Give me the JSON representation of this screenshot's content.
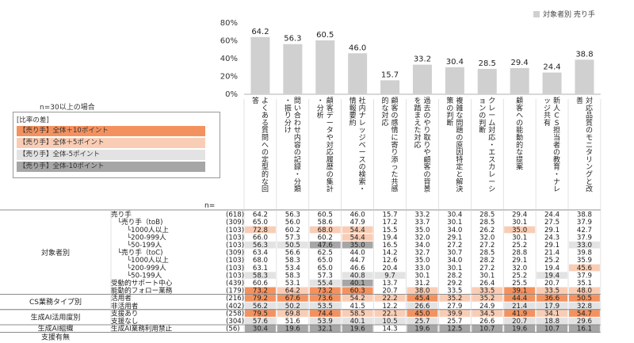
{
  "legend_top": {
    "label": "対象者別 売り手"
  },
  "condition_note": "n=30以上の場合",
  "diff_legend": {
    "title": "[比率の差]",
    "items": [
      {
        "label": "【売り手】全体＋10ポイント",
        "color": "#F4925F"
      },
      {
        "label": "【売り手】全体＋5ポイント",
        "color": "#F9CDB5"
      },
      {
        "label": "【売り手】全体-5ポイント",
        "color": "#E3E3E3"
      },
      {
        "label": "【売り手】全体-10ポイント",
        "color": "#A6A6A6"
      }
    ]
  },
  "colors": {
    "bar": "#D0D0D0",
    "plus10": "#F4925F",
    "plus5": "#F9CDB5",
    "minus5": "#E3E3E3",
    "minus10": "#A6A6A6"
  },
  "chart_data": {
    "type": "bar",
    "ylim": [
      0,
      80
    ],
    "y_ticks": [
      "0%",
      "20%",
      "40%",
      "60%",
      "80%"
    ],
    "categories": [
      "よくある質問への定型的な回答",
      "問い合わせ内容の記録・分類・振り分け",
      "顧客データや対応履歴の集計・分析",
      "社内ナレッジベースの検索・情報要約",
      "顧客の感情に寄り添った共感的な対応",
      "過去のやり取りや顧客の背景を踏まえた対応",
      "複雑な問題の原因特定と解決策の判断",
      "クレーム対応・エスカレーションの判断",
      "顧客への能動的な提案",
      "新人CS担当者の教育・ナレッジ共有",
      "対応品質のモニタリングと改善"
    ],
    "series": [
      {
        "name": "対象者別 売り手",
        "values": [
          64.2,
          56.3,
          60.5,
          46.0,
          15.7,
          33.2,
          30.4,
          28.5,
          29.4,
          24.4,
          38.8
        ]
      }
    ],
    "n_label": "n=",
    "table": {
      "groups": [
        {
          "label": "対象者別",
          "rows": [
            0,
            10
          ]
        },
        {
          "label": "CS業務タイプ別",
          "rows": [
            11,
            12
          ]
        },
        {
          "label": "生成AI活用度別",
          "rows": [
            13,
            14
          ]
        },
        {
          "label": "生成AI組織",
          "rows": [
            15,
            15
          ]
        },
        {
          "label": "支援有無",
          "rows": [
            16,
            17
          ]
        }
      ],
      "rows": [
        {
          "label": "売り手",
          "n": "(618)",
          "values": [
            "64.2",
            "56.3",
            "60.5",
            "46.0",
            "15.7",
            "33.2",
            "30.4",
            "28.5",
            "29.4",
            "24.4",
            "38.8"
          ],
          "flags": [
            0,
            0,
            0,
            0,
            0,
            0,
            0,
            0,
            0,
            0,
            0
          ]
        },
        {
          "label": "└売り手（toB)",
          "n": "(309)",
          "values": [
            "65.0",
            "56.0",
            "58.6",
            "47.9",
            "17.2",
            "33.7",
            "30.1",
            "28.5",
            "30.1",
            "27.5",
            "37.9"
          ],
          "flags": [
            0,
            0,
            0,
            0,
            0,
            0,
            0,
            0,
            0,
            0,
            0
          ]
        },
        {
          "label": "└1000人以上",
          "n": "(103)",
          "values": [
            "72.8",
            "60.2",
            "68.0",
            "54.4",
            "15.5",
            "35.0",
            "34.0",
            "26.2",
            "35.0",
            "29.1",
            "42.7"
          ],
          "flags": [
            1,
            0,
            1,
            1,
            0,
            0,
            0,
            0,
            1,
            0,
            0
          ]
        },
        {
          "label": "└200-999人",
          "n": "(103)",
          "values": [
            "66.0",
            "57.3",
            "60.2",
            "54.4",
            "19.4",
            "32.0",
            "29.1",
            "32.0",
            "30.1",
            "24.3",
            "37.9"
          ],
          "flags": [
            0,
            0,
            0,
            1,
            0,
            0,
            0,
            0,
            0,
            0,
            0
          ]
        },
        {
          "label": "└50-199人",
          "n": "(103)",
          "values": [
            "56.3",
            "50.5",
            "47.6",
            "35.0",
            "16.5",
            "34.0",
            "27.2",
            "27.2",
            "25.2",
            "29.1",
            "33.0"
          ],
          "flags": [
            -1,
            -1,
            -2,
            -2,
            0,
            0,
            0,
            0,
            0,
            0,
            -1
          ]
        },
        {
          "label": "└売り手（toC)",
          "n": "(309)",
          "values": [
            "63.4",
            "56.6",
            "62.5",
            "44.0",
            "14.2",
            "32.7",
            "30.7",
            "28.5",
            "28.8",
            "21.4",
            "39.8"
          ],
          "flags": [
            0,
            0,
            0,
            0,
            0,
            0,
            0,
            0,
            0,
            0,
            0
          ]
        },
        {
          "label": "└1000人以上",
          "n": "(103)",
          "values": [
            "68.0",
            "58.3",
            "65.0",
            "44.7",
            "12.6",
            "35.0",
            "34.0",
            "28.2",
            "29.1",
            "25.2",
            "35.9"
          ],
          "flags": [
            0,
            0,
            0,
            0,
            0,
            0,
            0,
            0,
            0,
            0,
            0
          ]
        },
        {
          "label": "└200-999人",
          "n": "(103)",
          "values": [
            "63.1",
            "53.4",
            "65.0",
            "46.6",
            "20.4",
            "33.0",
            "30.1",
            "27.2",
            "32.0",
            "19.4",
            "45.6"
          ],
          "flags": [
            0,
            0,
            0,
            0,
            0,
            0,
            0,
            0,
            0,
            0,
            1
          ]
        },
        {
          "label": "└50-199人",
          "n": "(103)",
          "values": [
            "58.3",
            "58.3",
            "57.3",
            "40.8",
            "9.7",
            "30.1",
            "28.2",
            "30.1",
            "25.2",
            "19.4",
            "37.9"
          ],
          "flags": [
            -1,
            0,
            0,
            -1,
            -1,
            0,
            0,
            0,
            0,
            -1,
            0
          ]
        },
        {
          "label": "受動的サポート中心",
          "n": "(439)",
          "values": [
            "60.6",
            "53.1",
            "55.4",
            "40.1",
            "13.7",
            "31.2",
            "29.2",
            "26.4",
            "25.5",
            "20.7",
            "35.1"
          ],
          "flags": [
            0,
            0,
            -1,
            -2,
            0,
            0,
            0,
            0,
            0,
            0,
            0
          ]
        },
        {
          "label": "能動的フォロー業務",
          "n": "(179)",
          "values": [
            "73.2",
            "64.2",
            "73.2",
            "60.3",
            "20.7",
            "38.0",
            "33.5",
            "33.5",
            "39.1",
            "33.5",
            "48.0"
          ],
          "flags": [
            2,
            1,
            2,
            2,
            0,
            1,
            0,
            1,
            2,
            1,
            1
          ]
        },
        {
          "label": "活用者",
          "n": "(216)",
          "values": [
            "79.2",
            "67.6",
            "73.6",
            "54.2",
            "22.2",
            "45.4",
            "35.2",
            "35.2",
            "44.4",
            "36.6",
            "50.5"
          ],
          "flags": [
            2,
            2,
            2,
            1,
            1,
            2,
            1,
            1,
            2,
            2,
            2
          ]
        },
        {
          "label": "非活用者",
          "n": "(402)",
          "values": [
            "56.2",
            "50.2",
            "53.5",
            "41.5",
            "12.2",
            "26.6",
            "27.9",
            "24.9",
            "21.4",
            "17.9",
            "32.8"
          ],
          "flags": [
            -1,
            -1,
            -1,
            0,
            0,
            -1,
            0,
            0,
            -1,
            -1,
            -1
          ]
        },
        {
          "label": "支援あり",
          "n": "(258)",
          "values": [
            "79.5",
            "69.8",
            "74.4",
            "58.5",
            "22.1",
            "45.0",
            "39.9",
            "34.5",
            "41.9",
            "34.1",
            "54.7"
          ],
          "flags": [
            2,
            1,
            2,
            1,
            1,
            2,
            1,
            1,
            2,
            1,
            2
          ]
        },
        {
          "label": "支援なし",
          "n": "(304)",
          "values": [
            "57.6",
            "51.6",
            "53.9",
            "40.1",
            "10.5",
            "25.7",
            "25.7",
            "26.6",
            "20.7",
            "18.8",
            "29.6"
          ],
          "flags": [
            -1,
            0,
            -1,
            -1,
            -1,
            -1,
            0,
            0,
            -1,
            -1,
            -1
          ]
        },
        {
          "label": "生成AI業務利用禁止",
          "n": "(56)",
          "values": [
            "30.4",
            "19.6",
            "32.1",
            "19.6",
            "14.3",
            "19.6",
            "12.5",
            "10.7",
            "19.6",
            "10.7",
            "16.1"
          ],
          "flags": [
            -2,
            -2,
            -2,
            -2,
            0,
            -2,
            -2,
            -2,
            -2,
            -2,
            -2
          ]
        }
      ]
    }
  }
}
